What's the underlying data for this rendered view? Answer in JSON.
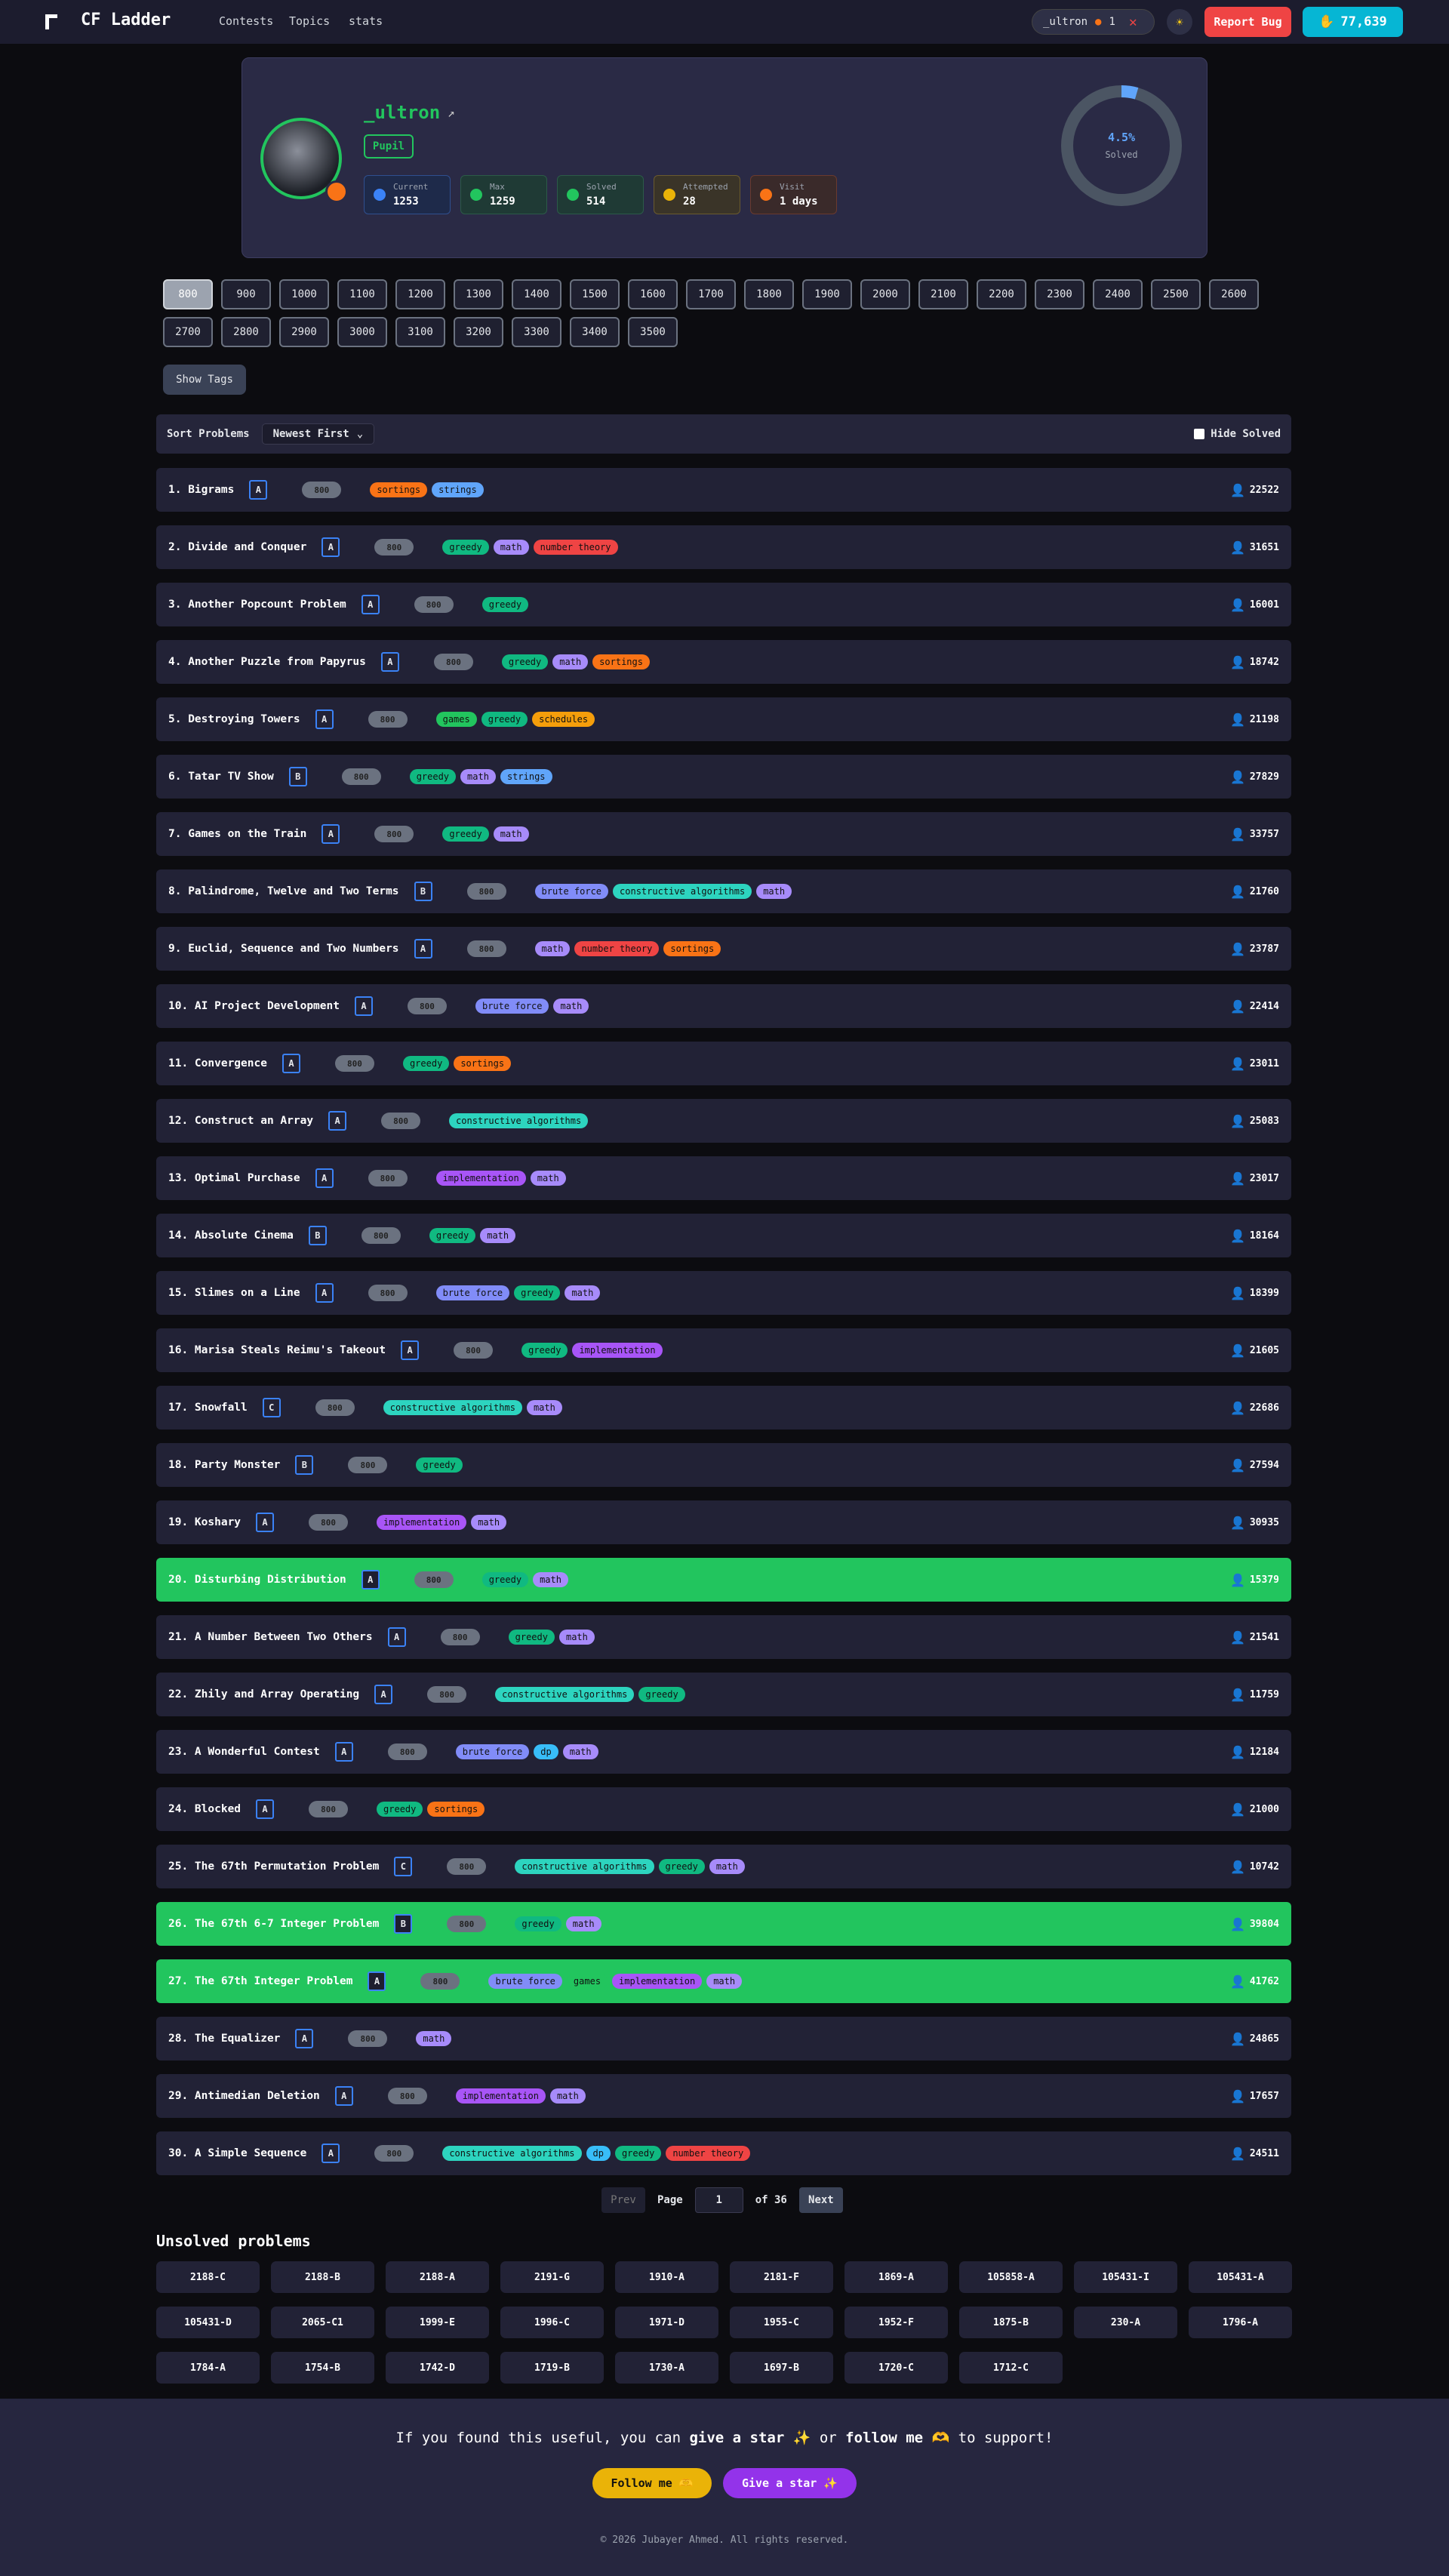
{
  "nav": {
    "brand": "CF Ladder",
    "links": [
      "Contests",
      "Topics",
      "stats"
    ],
    "user": "_ultron",
    "streak": "1",
    "report": "Report Bug",
    "coins": "77,639"
  },
  "profile": {
    "name": "_ultron",
    "rank": "Pupil",
    "stats": [
      {
        "label": "Current",
        "value": "1253"
      },
      {
        "label": "Max",
        "value": "1259"
      },
      {
        "label": "Solved",
        "value": "514"
      },
      {
        "label": "Attempted",
        "value": "28"
      },
      {
        "label": "Visit",
        "value": "1 days"
      }
    ],
    "solved_percent": {
      "value": 4.5,
      "label": "4.5%"
    },
    "solved_caption": "Solved"
  },
  "ratings": [
    "800",
    "900",
    "1000",
    "1100",
    "1200",
    "1300",
    "1400",
    "1500",
    "1600",
    "1700",
    "1800",
    "1900",
    "2000",
    "2100",
    "2200",
    "2300",
    "2400",
    "2500",
    "2600",
    "2700",
    "2800",
    "2900",
    "3000",
    "3100",
    "3200",
    "3300",
    "3400",
    "3500"
  ],
  "selected_rating": "800",
  "show_tags": "Show Tags",
  "sort": {
    "label": "Sort Problems",
    "option": "Newest First",
    "hide_solved": "Hide Solved"
  },
  "problems": [
    {
      "title": "1. Bigrams",
      "index": "A",
      "rating": "800",
      "tags": [
        "sortings",
        "strings"
      ],
      "solved_count": "22522",
      "solved": false
    },
    {
      "title": "2. Divide and Conquer",
      "index": "A",
      "rating": "800",
      "tags": [
        "greedy",
        "math",
        "number theory"
      ],
      "solved_count": "31651",
      "solved": false
    },
    {
      "title": "3. Another Popcount Problem",
      "index": "A",
      "rating": "800",
      "tags": [
        "greedy"
      ],
      "solved_count": "16001",
      "solved": false
    },
    {
      "title": "4. Another Puzzle from Papyrus",
      "index": "A",
      "rating": "800",
      "tags": [
        "greedy",
        "math",
        "sortings"
      ],
      "solved_count": "18742",
      "solved": false
    },
    {
      "title": "5. Destroying Towers",
      "index": "A",
      "rating": "800",
      "tags": [
        "games",
        "greedy",
        "schedules"
      ],
      "solved_count": "21198",
      "solved": false
    },
    {
      "title": "6. Tatar TV Show",
      "index": "B",
      "rating": "800",
      "tags": [
        "greedy",
        "math",
        "strings"
      ],
      "solved_count": "27829",
      "solved": false
    },
    {
      "title": "7. Games on the Train",
      "index": "A",
      "rating": "800",
      "tags": [
        "greedy",
        "math"
      ],
      "solved_count": "33757",
      "solved": false
    },
    {
      "title": "8. Palindrome, Twelve and Two Terms",
      "index": "B",
      "rating": "800",
      "tags": [
        "brute force",
        "constructive algorithms",
        "math"
      ],
      "solved_count": "21760",
      "solved": false
    },
    {
      "title": "9. Euclid, Sequence and Two Numbers",
      "index": "A",
      "rating": "800",
      "tags": [
        "math",
        "number theory",
        "sortings"
      ],
      "solved_count": "23787",
      "solved": false
    },
    {
      "title": "10. AI Project Development",
      "index": "A",
      "rating": "800",
      "tags": [
        "brute force",
        "math"
      ],
      "solved_count": "22414",
      "solved": false
    },
    {
      "title": "11. Convergence",
      "index": "A",
      "rating": "800",
      "tags": [
        "greedy",
        "sortings"
      ],
      "solved_count": "23011",
      "solved": false
    },
    {
      "title": "12. Construct an Array",
      "index": "A",
      "rating": "800",
      "tags": [
        "constructive algorithms"
      ],
      "solved_count": "25083",
      "solved": false
    },
    {
      "title": "13. Optimal Purchase",
      "index": "A",
      "rating": "800",
      "tags": [
        "implementation",
        "math"
      ],
      "solved_count": "23017",
      "solved": false
    },
    {
      "title": "14. Absolute Cinema",
      "index": "B",
      "rating": "800",
      "tags": [
        "greedy",
        "math"
      ],
      "solved_count": "18164",
      "solved": false
    },
    {
      "title": "15. Slimes on a Line",
      "index": "A",
      "rating": "800",
      "tags": [
        "brute force",
        "greedy",
        "math"
      ],
      "solved_count": "18399",
      "solved": false
    },
    {
      "title": "16. Marisa Steals Reimu's Takeout",
      "index": "A",
      "rating": "800",
      "tags": [
        "greedy",
        "implementation"
      ],
      "solved_count": "21605",
      "solved": false
    },
    {
      "title": "17. Snowfall",
      "index": "C",
      "rating": "800",
      "tags": [
        "constructive algorithms",
        "math"
      ],
      "solved_count": "22686",
      "solved": false
    },
    {
      "title": "18. Party Monster",
      "index": "B",
      "rating": "800",
      "tags": [
        "greedy"
      ],
      "solved_count": "27594",
      "solved": false
    },
    {
      "title": "19. Koshary",
      "index": "A",
      "rating": "800",
      "tags": [
        "implementation",
        "math"
      ],
      "solved_count": "30935",
      "solved": false
    },
    {
      "title": "20. Disturbing Distribution",
      "index": "A",
      "rating": "800",
      "tags": [
        "greedy",
        "math"
      ],
      "solved_count": "15379",
      "solved": true
    },
    {
      "title": "21. A Number Between Two Others",
      "index": "A",
      "rating": "800",
      "tags": [
        "greedy",
        "math"
      ],
      "solved_count": "21541",
      "solved": false
    },
    {
      "title": "22. Zhily and Array Operating",
      "index": "A",
      "rating": "800",
      "tags": [
        "constructive algorithms",
        "greedy"
      ],
      "solved_count": "11759",
      "solved": false
    },
    {
      "title": "23. A Wonderful Contest",
      "index": "A",
      "rating": "800",
      "tags": [
        "brute force",
        "dp",
        "math"
      ],
      "solved_count": "12184",
      "solved": false
    },
    {
      "title": "24. Blocked",
      "index": "A",
      "rating": "800",
      "tags": [
        "greedy",
        "sortings"
      ],
      "solved_count": "21000",
      "solved": false
    },
    {
      "title": "25. The 67th Permutation Problem",
      "index": "C",
      "rating": "800",
      "tags": [
        "constructive algorithms",
        "greedy",
        "math"
      ],
      "solved_count": "10742",
      "solved": false
    },
    {
      "title": "26. The 67th 6-7 Integer Problem",
      "index": "B",
      "rating": "800",
      "tags": [
        "greedy",
        "math"
      ],
      "solved_count": "39804",
      "solved": true
    },
    {
      "title": "27. The 67th Integer Problem",
      "index": "A",
      "rating": "800",
      "tags": [
        "brute force",
        "games",
        "implementation",
        "math"
      ],
      "solved_count": "41762",
      "solved": true
    },
    {
      "title": "28. The Equalizer",
      "index": "A",
      "rating": "800",
      "tags": [
        "math"
      ],
      "solved_count": "24865",
      "solved": false
    },
    {
      "title": "29. Antimedian Deletion",
      "index": "A",
      "rating": "800",
      "tags": [
        "implementation",
        "math"
      ],
      "solved_count": "17657",
      "solved": false
    },
    {
      "title": "30. A Simple Sequence",
      "index": "A",
      "rating": "800",
      "tags": [
        "constructive algorithms",
        "dp",
        "greedy",
        "number theory"
      ],
      "solved_count": "24511",
      "solved": false
    }
  ],
  "pagination": {
    "prev": "Prev",
    "page": "Page",
    "current": "1",
    "total": "of 36",
    "next": "Next"
  },
  "unsolved": {
    "title": "Unsolved problems",
    "items": [
      "2188-C",
      "2188-B",
      "2188-A",
      "2191-G",
      "1910-A",
      "2181-F",
      "1869-A",
      "105858-A",
      "105431-I",
      "105431-A",
      "105431-D",
      "2065-C1",
      "1999-E",
      "1996-C",
      "1971-D",
      "1955-C",
      "1952-F",
      "1875-B",
      "230-A",
      "1796-A",
      "1784-A",
      "1754-B",
      "1742-D",
      "1719-B",
      "1730-A",
      "1697-B",
      "1720-C",
      "1712-C"
    ]
  },
  "footer": {
    "message": [
      {
        "text": "If you found this useful, you can ",
        "bold": false
      },
      {
        "text": "give a star ✨",
        "bold": true
      },
      {
        "text": " or ",
        "bold": false
      },
      {
        "text": "follow me 🫶",
        "bold": true
      },
      {
        "text": " to support!",
        "bold": false
      }
    ],
    "follow": "Follow me 🫶",
    "star": "Give a star ✨",
    "copyright": "© 2026 Jubayer Ahmed. All rights reserved."
  }
}
